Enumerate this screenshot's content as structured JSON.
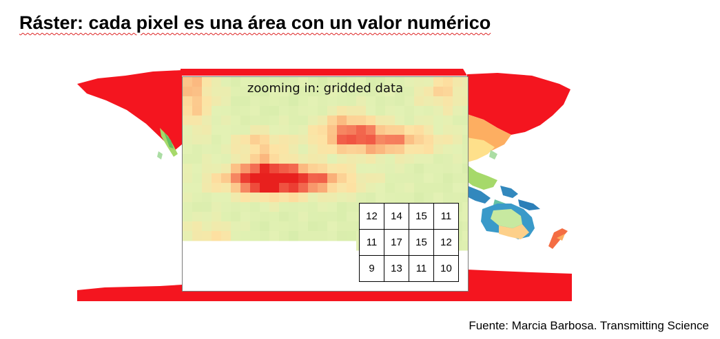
{
  "slide": {
    "title": "Ráster: cada pixel es una área con un valor numérico",
    "source": "Fuente: Marcia Barbosa. Transmitting Science"
  },
  "panel": {
    "title": "zooming in: gridded data"
  },
  "grid_values": [
    [
      "12",
      "14",
      "15",
      "11"
    ],
    [
      "11",
      "17",
      "15",
      "12"
    ],
    [
      "9",
      "13",
      "11",
      "10"
    ]
  ],
  "colors": {
    "high": "#e8201e",
    "mid": "#fdd08a",
    "low": "#d4ecaa",
    "cool": "#2c7fb8",
    "ice": "#f4151f"
  }
}
